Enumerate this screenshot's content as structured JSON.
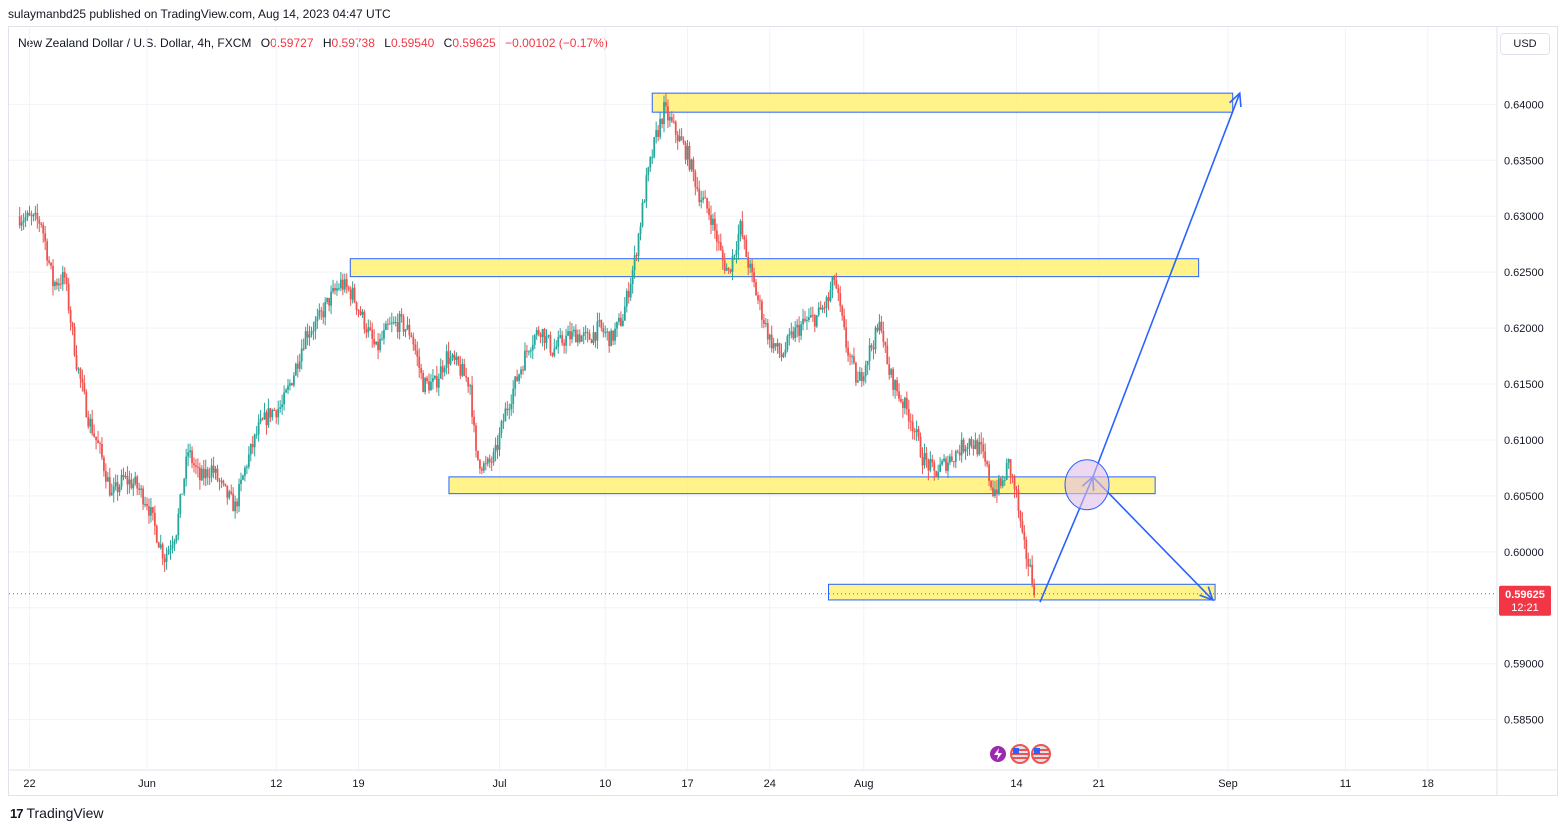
{
  "header": {
    "published": "sulaymanbd25 published on TradingView.com, Aug 14, 2023 04:47 UTC"
  },
  "legend": {
    "symbol": "New Zealand Dollar / U.S. Dollar, 4h, FXCM",
    "o_label": "O",
    "o_value": "0.59727",
    "h_label": "H",
    "h_value": "0.59738",
    "l_label": "L",
    "l_value": "0.59540",
    "c_label": "C",
    "c_value": "0.59625",
    "change": "−0.00102 (−0.17%)"
  },
  "currency_button": "USD",
  "price_tag": {
    "price": "0.59625",
    "countdown": "12:21"
  },
  "brand": {
    "name": "TradingView",
    "logo": "17"
  },
  "event_icons": [
    "lightning-icon",
    "us-flag-icon",
    "us-flag-icon"
  ],
  "colors": {
    "up": "#26a69a",
    "down": "#ef5350",
    "zone_fill": "#fff176",
    "zone_border": "#2962ff",
    "projection": "#2962ff",
    "price_line": "#f23645",
    "grid": "#f0f3fa"
  },
  "chart_data": {
    "type": "candlestick",
    "timeframe": "4h",
    "ylim": [
      0.5805,
      0.6445
    ],
    "y_ticks": [
      "0.64000",
      "0.63500",
      "0.63000",
      "0.62500",
      "0.62000",
      "0.61500",
      "0.61000",
      "0.60500",
      "0.60000",
      "0.59500",
      "0.59000",
      "0.58500"
    ],
    "x_ticks": [
      "22",
      "Jun",
      "12",
      "19",
      "Jul",
      "10",
      "17",
      "24",
      "Aug",
      "14",
      "21",
      "Sep",
      "11",
      "18"
    ],
    "x_tick_days": [
      -10,
      0,
      11,
      18,
      30,
      39,
      46,
      53,
      61,
      74,
      81,
      92,
      102,
      109
    ],
    "x_tick_offset_note": "",
    "close_anchors": [
      [
        -11,
        0.63
      ],
      [
        -9,
        0.6295
      ],
      [
        -8,
        0.624
      ],
      [
        -7,
        0.6245
      ],
      [
        -6,
        0.617
      ],
      [
        -5,
        0.612
      ],
      [
        -4,
        0.609
      ],
      [
        -3,
        0.605
      ],
      [
        -2,
        0.6065
      ],
      [
        -1,
        0.606
      ],
      [
        0,
        0.6045
      ],
      [
        1,
        0.601
      ],
      [
        1.5,
        0.5995
      ],
      [
        2.5,
        0.602
      ],
      [
        3.5,
        0.609
      ],
      [
        4.5,
        0.6065
      ],
      [
        5.5,
        0.6075
      ],
      [
        6.5,
        0.6055
      ],
      [
        7.5,
        0.604
      ],
      [
        8.5,
        0.608
      ],
      [
        9.5,
        0.611
      ],
      [
        10.5,
        0.6125
      ],
      [
        11.5,
        0.613
      ],
      [
        12.5,
        0.616
      ],
      [
        13.5,
        0.6195
      ],
      [
        14.5,
        0.6205
      ],
      [
        15.5,
        0.6225
      ],
      [
        16.5,
        0.624
      ],
      [
        17.5,
        0.623
      ],
      [
        18.5,
        0.6205
      ],
      [
        19.5,
        0.618
      ],
      [
        20.5,
        0.62
      ],
      [
        21.5,
        0.6205
      ],
      [
        22.5,
        0.6195
      ],
      [
        23.5,
        0.615
      ],
      [
        24.5,
        0.615
      ],
      [
        25.5,
        0.6175
      ],
      [
        26.5,
        0.6165
      ],
      [
        27.5,
        0.615
      ],
      [
        28,
        0.6085
      ],
      [
        28.8,
        0.6075
      ],
      [
        29.6,
        0.6085
      ],
      [
        30.5,
        0.6125
      ],
      [
        31.5,
        0.6155
      ],
      [
        32.5,
        0.6185
      ],
      [
        33.5,
        0.62
      ],
      [
        34.5,
        0.618
      ],
      [
        35.5,
        0.619
      ],
      [
        36.5,
        0.6195
      ],
      [
        37.5,
        0.619
      ],
      [
        38.5,
        0.62
      ],
      [
        39.5,
        0.619
      ],
      [
        40.5,
        0.621
      ],
      [
        41.5,
        0.626
      ],
      [
        42.5,
        0.633
      ],
      [
        43.3,
        0.637
      ],
      [
        44,
        0.6395
      ],
      [
        45,
        0.6375
      ],
      [
        46,
        0.6355
      ],
      [
        47,
        0.632
      ],
      [
        48,
        0.63
      ],
      [
        49,
        0.626
      ],
      [
        49.5,
        0.625
      ],
      [
        50.5,
        0.629
      ],
      [
        51,
        0.6265
      ],
      [
        52,
        0.6225
      ],
      [
        53,
        0.619
      ],
      [
        54,
        0.6175
      ],
      [
        55,
        0.6195
      ],
      [
        56,
        0.6205
      ],
      [
        57,
        0.621
      ],
      [
        58,
        0.6225
      ],
      [
        58.5,
        0.6245
      ],
      [
        59.5,
        0.6185
      ],
      [
        60.5,
        0.615
      ],
      [
        61.5,
        0.618
      ],
      [
        62.5,
        0.6205
      ],
      [
        63,
        0.6165
      ],
      [
        64,
        0.614
      ],
      [
        65,
        0.612
      ],
      [
        66,
        0.6085
      ],
      [
        67,
        0.607
      ],
      [
        68,
        0.608
      ],
      [
        69,
        0.609
      ],
      [
        70,
        0.61
      ],
      [
        71,
        0.609
      ],
      [
        72,
        0.6055
      ],
      [
        72.8,
        0.606
      ],
      [
        73.3,
        0.608
      ],
      [
        74,
        0.605
      ],
      [
        74.5,
        0.601
      ],
      [
        75,
        0.599
      ],
      [
        75.6,
        0.5965
      ]
    ],
    "zones": [
      {
        "day_from": 43.0,
        "day_to": 92.4,
        "price_from": 0.6393,
        "price_to": 0.641
      },
      {
        "day_from": 17.3,
        "day_to": 89.5,
        "price_from": 0.6246,
        "price_to": 0.6262
      },
      {
        "day_from": 25.7,
        "day_to": 85.8,
        "price_from": 0.6052,
        "price_to": 0.6067
      },
      {
        "day_from": 58.0,
        "day_to": 90.9,
        "price_from": 0.5957,
        "price_to": 0.5971
      }
    ],
    "projection": {
      "points": [
        [
          76.0,
          0.5955
        ],
        [
          80.5,
          0.6067
        ],
        [
          90.7,
          0.5957
        ]
      ],
      "arrow_to": [
        [
          80.5,
          0.6067
        ],
        [
          93.0,
          0.641
        ]
      ],
      "target_circle": {
        "day": 80.0,
        "price": 0.606
      }
    },
    "last_price": 0.59625
  }
}
